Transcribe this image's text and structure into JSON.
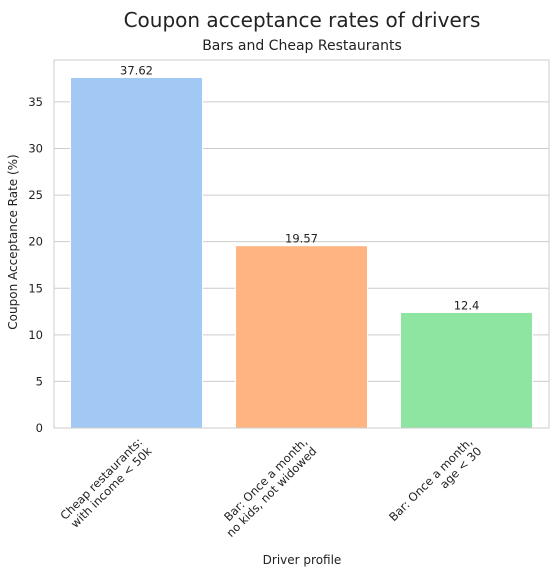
{
  "chart_data": {
    "type": "bar",
    "title": "Coupon acceptance rates of drivers",
    "subtitle": "Bars and Cheap Restaurants",
    "xlabel": "Driver profile",
    "ylabel": "Coupon Acceptance Rate (%)",
    "categories": [
      [
        "Cheap restaurants:",
        "with income < 50k"
      ],
      [
        "Bar: Once a month,",
        "no kids, not widowed"
      ],
      [
        "Bar: Once a month,",
        "age < 30"
      ]
    ],
    "values": [
      37.62,
      19.57,
      12.4
    ],
    "value_labels": [
      "37.62",
      "19.57",
      "12.4"
    ],
    "colors": [
      "#a1c9f4",
      "#ffb482",
      "#8de5a1"
    ],
    "ylim": [
      0,
      39.5
    ],
    "yticks": [
      0,
      5,
      10,
      15,
      20,
      25,
      30,
      35
    ],
    "grid": "horizontal"
  }
}
